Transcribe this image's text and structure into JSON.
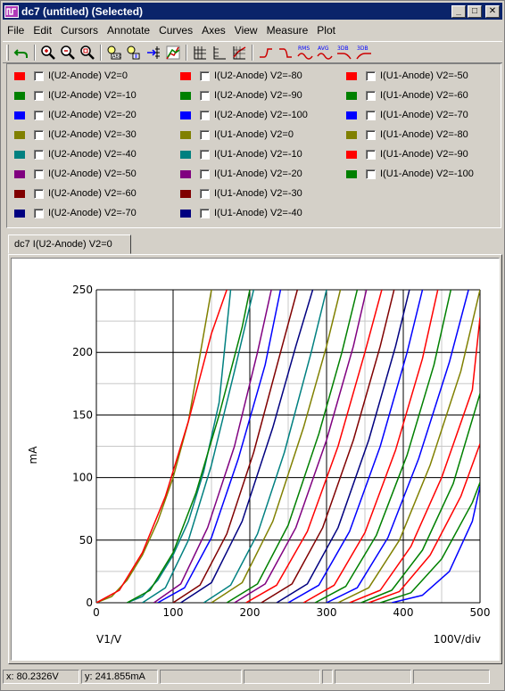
{
  "window": {
    "title": "dc7 (untitled) (Selected)",
    "minimize_label": "_",
    "maximize_label": "□",
    "close_label": "✕"
  },
  "menu": [
    "File",
    "Edit",
    "Cursors",
    "Annotate",
    "Curves",
    "Axes",
    "View",
    "Measure",
    "Plot"
  ],
  "toolbar": {
    "icons": [
      "undo-icon",
      "zoom-in-icon",
      "zoom-out-icon",
      "zoom-fit-icon",
      "text-label-icon",
      "annotation-icon",
      "tick-mark-icon",
      "curve-color-icon",
      "grid-icon",
      "grid-minor-icon",
      "chart-icon",
      "rise-edge-icon",
      "fall-edge-icon",
      "rms-icon",
      "avg-icon",
      "3db-high-icon",
      "3db-low-icon"
    ],
    "rms_label": "RMS",
    "avg_label": "AVG",
    "db_label": "3DB"
  },
  "legend": {
    "columns": [
      [
        {
          "label": "I(U2-Anode) V2=0",
          "color": "#ff0000"
        },
        {
          "label": "I(U2-Anode) V2=-10",
          "color": "#008000"
        },
        {
          "label": "I(U2-Anode) V2=-20",
          "color": "#0000ff"
        },
        {
          "label": "I(U2-Anode) V2=-30",
          "color": "#808000"
        },
        {
          "label": "I(U2-Anode) V2=-40",
          "color": "#008080"
        },
        {
          "label": "I(U2-Anode) V2=-50",
          "color": "#800080"
        },
        {
          "label": "I(U2-Anode) V2=-60",
          "color": "#800000"
        },
        {
          "label": "I(U2-Anode) V2=-70",
          "color": "#000080"
        }
      ],
      [
        {
          "label": "I(U2-Anode) V2=-80",
          "color": "#ff0000"
        },
        {
          "label": "I(U2-Anode) V2=-90",
          "color": "#008000"
        },
        {
          "label": "I(U2-Anode) V2=-100",
          "color": "#0000ff"
        },
        {
          "label": "I(U1-Anode) V2=0",
          "color": "#808000"
        },
        {
          "label": "I(U1-Anode) V2=-10",
          "color": "#008080"
        },
        {
          "label": "I(U1-Anode) V2=-20",
          "color": "#800080"
        },
        {
          "label": "I(U1-Anode) V2=-30",
          "color": "#800000"
        },
        {
          "label": "I(U1-Anode) V2=-40",
          "color": "#000080"
        }
      ],
      [
        {
          "label": "I(U1-Anode) V2=-50",
          "color": "#ff0000"
        },
        {
          "label": "I(U1-Anode) V2=-60",
          "color": "#008000"
        },
        {
          "label": "I(U1-Anode) V2=-70",
          "color": "#0000ff"
        },
        {
          "label": "I(U1-Anode) V2=-80",
          "color": "#808000"
        },
        {
          "label": "I(U1-Anode) V2=-90",
          "color": "#ff0000"
        },
        {
          "label": "I(U1-Anode) V2=-100",
          "color": "#008000"
        }
      ]
    ]
  },
  "tab": {
    "label": "dc7 I(U2-Anode) V2=0"
  },
  "status": {
    "x": "x: 80.2326V",
    "y": "y: 241.855mA"
  },
  "chart_data": {
    "type": "line",
    "xlabel": "V1/V",
    "ylabel": "mA",
    "scale_note": "100V/div",
    "xlim": [
      0,
      500
    ],
    "ylim": [
      0,
      250
    ],
    "xticks": [
      0,
      100,
      200,
      300,
      400,
      500
    ],
    "yticks": [
      0,
      50,
      100,
      150,
      200,
      250
    ],
    "grid": true,
    "series": [
      {
        "color": "#808000",
        "x": [
          0,
          20,
          40,
          60,
          80,
          100,
          120,
          150
        ],
        "y": [
          0,
          5,
          18,
          38,
          65,
          100,
          145,
          250
        ]
      },
      {
        "color": "#ff0000",
        "x": [
          0,
          30,
          60,
          90,
          120,
          150,
          170
        ],
        "y": [
          0,
          10,
          40,
          85,
          145,
          215,
          250
        ]
      },
      {
        "color": "#008080",
        "x": [
          40,
          60,
          80,
          100,
          120,
          140,
          160,
          175
        ],
        "y": [
          0,
          5,
          18,
          38,
          65,
          105,
          160,
          250
        ]
      },
      {
        "color": "#008000",
        "x": [
          40,
          70,
          100,
          130,
          160,
          190,
          200
        ],
        "y": [
          0,
          10,
          40,
          88,
          150,
          220,
          250
        ]
      },
      {
        "color": "#008080",
        "x": [
          60,
          90,
          120,
          150,
          180,
          205
        ],
        "y": [
          0,
          12,
          50,
          110,
          185,
          250
        ]
      },
      {
        "color": "#800080",
        "x": [
          75,
          110,
          145,
          180,
          210,
          228
        ],
        "y": [
          0,
          15,
          60,
          125,
          200,
          250
        ]
      },
      {
        "color": "#0000ff",
        "x": [
          80,
          115,
          150,
          185,
          220,
          240
        ],
        "y": [
          0,
          12,
          52,
          115,
          190,
          250
        ]
      },
      {
        "color": "#800000",
        "x": [
          100,
          135,
          170,
          205,
          240,
          262
        ],
        "y": [
          0,
          14,
          55,
          120,
          200,
          250
        ]
      },
      {
        "color": "#000080",
        "x": [
          110,
          150,
          190,
          230,
          260,
          282
        ],
        "y": [
          0,
          16,
          65,
          140,
          205,
          250
        ]
      },
      {
        "color": "#008080",
        "x": [
          140,
          175,
          210,
          245,
          280,
          300
        ],
        "y": [
          0,
          14,
          55,
          120,
          200,
          250
        ]
      },
      {
        "color": "#808000",
        "x": [
          150,
          190,
          230,
          270,
          300,
          318
        ],
        "y": [
          0,
          16,
          65,
          140,
          205,
          250
        ]
      },
      {
        "color": "#008000",
        "x": [
          170,
          210,
          250,
          290,
          320,
          340
        ],
        "y": [
          0,
          15,
          62,
          135,
          200,
          250
        ]
      },
      {
        "color": "#800080",
        "x": [
          180,
          220,
          260,
          300,
          335,
          352
        ],
        "y": [
          0,
          15,
          60,
          130,
          205,
          250
        ]
      },
      {
        "color": "#ff0000",
        "x": [
          195,
          235,
          275,
          315,
          350,
          372
        ],
        "y": [
          0,
          14,
          57,
          125,
          200,
          250
        ]
      },
      {
        "color": "#800000",
        "x": [
          215,
          255,
          295,
          335,
          370,
          388
        ],
        "y": [
          0,
          15,
          60,
          130,
          205,
          250
        ]
      },
      {
        "color": "#000080",
        "x": [
          235,
          275,
          315,
          355,
          390,
          408
        ],
        "y": [
          0,
          15,
          60,
          130,
          205,
          250
        ]
      },
      {
        "color": "#0000ff",
        "x": [
          250,
          290,
          330,
          370,
          405,
          425
        ],
        "y": [
          0,
          14,
          57,
          125,
          200,
          250
        ]
      },
      {
        "color": "#ff0000",
        "x": [
          270,
          310,
          350,
          390,
          425,
          445
        ],
        "y": [
          0,
          14,
          56,
          122,
          195,
          250
        ]
      },
      {
        "color": "#008000",
        "x": [
          285,
          325,
          365,
          405,
          440,
          462
        ],
        "y": [
          0,
          13,
          54,
          118,
          190,
          250
        ]
      },
      {
        "color": "#0000ff",
        "x": [
          300,
          340,
          380,
          420,
          460,
          485
        ],
        "y": [
          0,
          12,
          52,
          115,
          192,
          250
        ]
      },
      {
        "color": "#808000",
        "x": [
          315,
          355,
          395,
          435,
          475,
          500
        ],
        "y": [
          0,
          12,
          50,
          110,
          185,
          250
        ]
      },
      {
        "color": "#ff0000",
        "x": [
          330,
          370,
          410,
          450,
          490,
          500
        ],
        "y": [
          0,
          10,
          45,
          100,
          170,
          228
        ]
      },
      {
        "color": "#008000",
        "x": [
          345,
          385,
          425,
          465,
          500
        ],
        "y": [
          0,
          10,
          42,
          95,
          167
        ]
      },
      {
        "color": "#ff0000",
        "x": [
          355,
          395,
          435,
          475,
          500
        ],
        "y": [
          0,
          9,
          38,
          85,
          127
        ]
      },
      {
        "color": "#008000",
        "x": [
          370,
          410,
          450,
          490,
          500
        ],
        "y": [
          0,
          8,
          35,
          80,
          96
        ]
      },
      {
        "color": "#0000ff",
        "x": [
          385,
          425,
          460,
          490,
          500
        ],
        "y": [
          0,
          6,
          25,
          65,
          93
        ]
      }
    ]
  }
}
